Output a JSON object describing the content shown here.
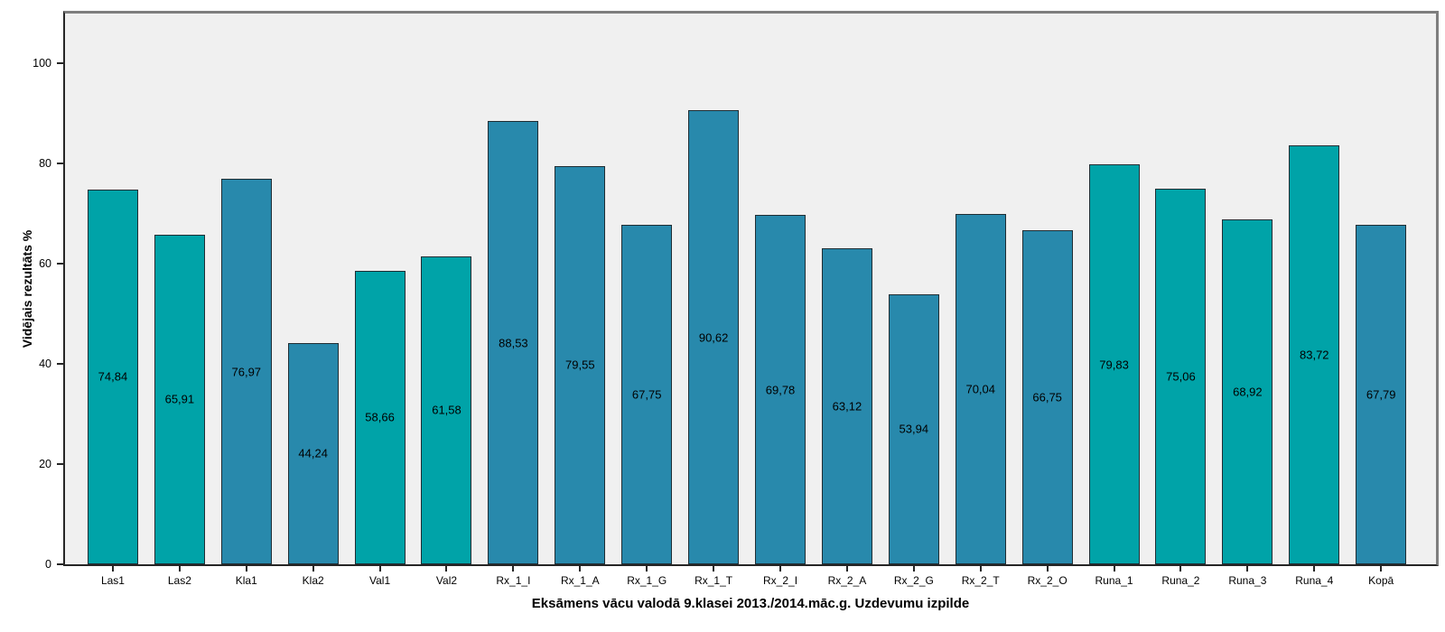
{
  "chart_data": {
    "type": "bar",
    "title": "",
    "xlabel": "Eksāmens vācu valodā 9.klasei 2013./2014.māc.g. Uzdevumu izpilde",
    "ylabel": "Vidējais rezultāts %",
    "ylim": [
      0,
      110
    ],
    "yticks": [
      0,
      20,
      40,
      60,
      80,
      100
    ],
    "grid": false,
    "legend": null,
    "categories": [
      "Las1",
      "Las2",
      "Kla1",
      "Kla2",
      "Val1",
      "Val2",
      "Rx_1_I",
      "Rx_1_A",
      "Rx_1_G",
      "Rx_1_T",
      "Rx_2_I",
      "Rx_2_A",
      "Rx_2_G",
      "Rx_2_T",
      "Rx_2_O",
      "Runa_1",
      "Runa_2",
      "Runa_3",
      "Runa_4",
      "Kopā"
    ],
    "values": [
      74.84,
      65.91,
      76.97,
      44.24,
      58.66,
      61.58,
      88.53,
      79.55,
      67.75,
      90.62,
      69.78,
      63.12,
      53.94,
      70.04,
      66.75,
      79.83,
      75.06,
      68.92,
      83.72,
      67.79
    ],
    "value_labels": [
      "74,84",
      "65,91",
      "76,97",
      "44,24",
      "58,66",
      "61,58",
      "88,53",
      "79,55",
      "67,75",
      "90,62",
      "69,78",
      "63,12",
      "53,94",
      "70,04",
      "66,75",
      "79,83",
      "75,06",
      "68,92",
      "83,72",
      "67,79"
    ],
    "bar_colors": [
      "teal",
      "teal",
      "blue",
      "blue",
      "teal",
      "teal",
      "blue",
      "blue",
      "blue",
      "blue",
      "blue",
      "blue",
      "blue",
      "blue",
      "blue",
      "teal",
      "teal",
      "teal",
      "teal",
      "blue"
    ],
    "colors": {
      "teal": "#00A3A8",
      "blue": "#2889AC",
      "bar_border": "#1F2D33",
      "plot_background": "#F0F0F0",
      "frame_light": "#7E7E7E",
      "frame_dark": "#262626",
      "page_background": "#FFFFFF"
    }
  }
}
